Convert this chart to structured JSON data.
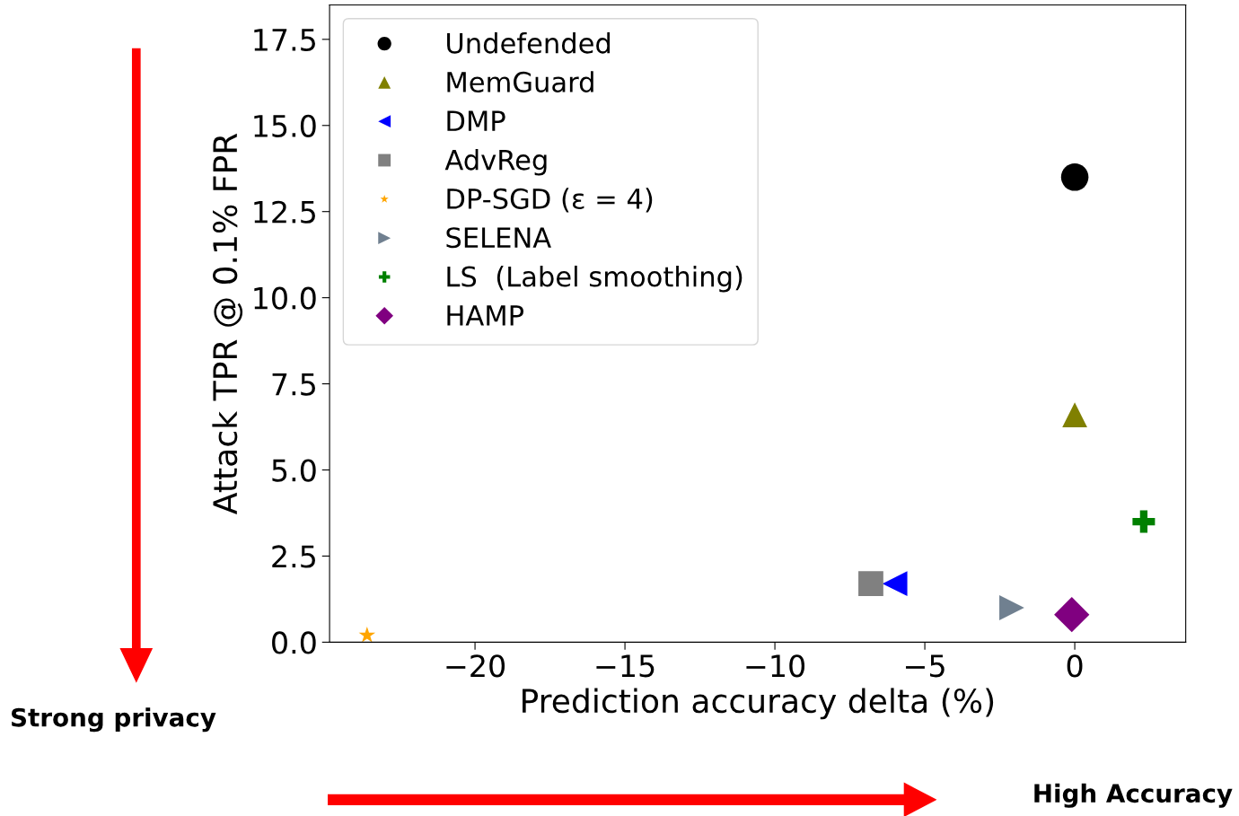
{
  "chart_data": {
    "type": "scatter",
    "xlabel": "Prediction accuracy delta (%)",
    "ylabel": "Attack TPR @ 0.1% FPR",
    "xlim": [
      -24.85,
      3.7
    ],
    "ylim": [
      0,
      18.5
    ],
    "xticks": [
      {
        "value": -20,
        "label": "−20"
      },
      {
        "value": -15,
        "label": "−15"
      },
      {
        "value": -10,
        "label": "−10"
      },
      {
        "value": -5,
        "label": "−5"
      },
      0
    ],
    "yticks": [
      {
        "value": 0,
        "label": "0.0"
      },
      2.5,
      {
        "value": 5,
        "label": "5.0"
      },
      7.5,
      {
        "value": 10,
        "label": "10.0"
      },
      12.5,
      {
        "value": 15,
        "label": "15.0"
      },
      17.5
    ],
    "grid": false,
    "legend": "top left",
    "series": [
      {
        "name": "Undefended",
        "color": "#000000",
        "marker": "circle",
        "x": [
          0
        ],
        "values": [
          13.5
        ]
      },
      {
        "name": "MemGuard",
        "color": "#808000",
        "marker": "triangle",
        "x": [
          0
        ],
        "values": [
          6.6
        ]
      },
      {
        "name": "DMP",
        "color": "#0000ff",
        "marker": "triangle_left",
        "x": [
          -6.0
        ],
        "values": [
          1.7
        ]
      },
      {
        "name": "AdvReg",
        "color": "#808080",
        "marker": "square",
        "x": [
          -6.8
        ],
        "values": [
          1.7
        ]
      },
      {
        "name": "DP-SGD (ε = 4)",
        "color": "#ffa500",
        "marker": "star",
        "x": [
          -23.6
        ],
        "values": [
          0.2
        ]
      },
      {
        "name": "SELENA",
        "color": "#708090",
        "marker": "triangle_right",
        "x": [
          -2.1
        ],
        "values": [
          1.0
        ]
      },
      {
        "name": "LS  (Label smoothing)",
        "color": "#008000",
        "marker": "plus",
        "x": [
          2.3
        ],
        "values": [
          3.5
        ]
      },
      {
        "name": "HAMP",
        "color": "#800080",
        "marker": "diamond",
        "x": [
          -0.1
        ],
        "values": [
          0.8
        ]
      }
    ],
    "annotations": [
      "Strong privacy",
      "High Accuracy"
    ]
  }
}
